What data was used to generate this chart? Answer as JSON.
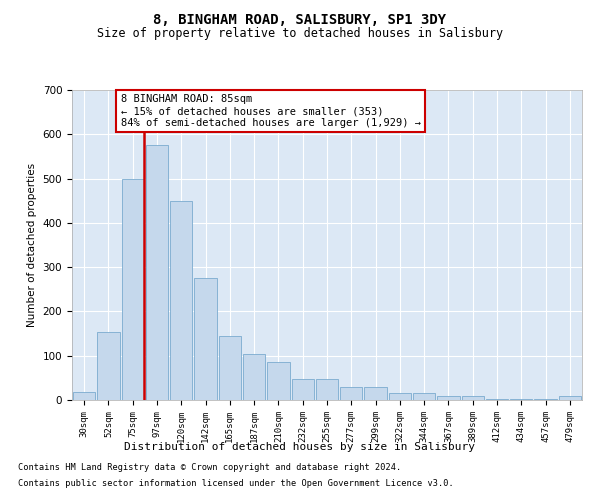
{
  "title": "8, BINGHAM ROAD, SALISBURY, SP1 3DY",
  "subtitle": "Size of property relative to detached houses in Salisbury",
  "xlabel": "Distribution of detached houses by size in Salisbury",
  "ylabel": "Number of detached properties",
  "bar_labels": [
    "30sqm",
    "52sqm",
    "75sqm",
    "97sqm",
    "120sqm",
    "142sqm",
    "165sqm",
    "187sqm",
    "210sqm",
    "232sqm",
    "255sqm",
    "277sqm",
    "299sqm",
    "322sqm",
    "344sqm",
    "367sqm",
    "389sqm",
    "412sqm",
    "434sqm",
    "457sqm",
    "479sqm"
  ],
  "bar_values": [
    18,
    153,
    500,
    575,
    450,
    275,
    145,
    105,
    85,
    48,
    48,
    30,
    30,
    15,
    15,
    8,
    8,
    2,
    2,
    2,
    8
  ],
  "bar_color": "#c5d8ec",
  "bar_edge_color": "#7aabcf",
  "vline_color": "#cc0000",
  "annotation_text": "8 BINGHAM ROAD: 85sqm\n← 15% of detached houses are smaller (353)\n84% of semi-detached houses are larger (1,929) →",
  "annotation_box_color": "#ffffff",
  "annotation_box_edge": "#cc0000",
  "ylim": [
    0,
    700
  ],
  "yticks": [
    0,
    100,
    200,
    300,
    400,
    500,
    600,
    700
  ],
  "background_color": "#dce8f5",
  "footer_line1": "Contains HM Land Registry data © Crown copyright and database right 2024.",
  "footer_line2": "Contains public sector information licensed under the Open Government Licence v3.0."
}
